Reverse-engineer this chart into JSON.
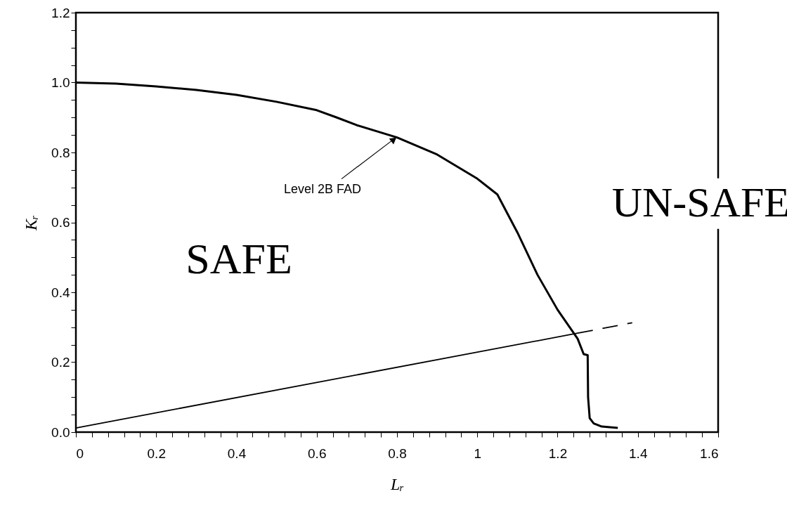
{
  "chart_data": {
    "type": "line",
    "xlabel": "Lᵣ",
    "ylabel": "Kᵣ",
    "xlim": [
      0,
      1.6
    ],
    "ylim": [
      0,
      1.2
    ],
    "xticks": [
      0,
      {
        "value": 0.04,
        "label": null
      },
      {
        "value": 0.08,
        "label": null
      },
      {
        "value": 0.12,
        "label": null
      },
      {
        "value": 0.16,
        "label": null
      },
      0.2,
      {
        "value": 0.24,
        "label": null
      },
      {
        "value": 0.28,
        "label": null
      },
      {
        "value": 0.32,
        "label": null
      },
      {
        "value": 0.36,
        "label": null
      },
      0.4,
      {
        "value": 0.44,
        "label": null
      },
      {
        "value": 0.48,
        "label": null
      },
      {
        "value": 0.52,
        "label": null
      },
      {
        "value": 0.56,
        "label": null
      },
      0.6,
      {
        "value": 0.64,
        "label": null
      },
      {
        "value": 0.68,
        "label": null
      },
      {
        "value": 0.72,
        "label": null
      },
      {
        "value": 0.76,
        "label": null
      },
      0.8,
      {
        "value": 0.84,
        "label": null
      },
      {
        "value": 0.88,
        "label": null
      },
      {
        "value": 0.92,
        "label": null
      },
      {
        "value": 0.96,
        "label": null
      },
      1,
      {
        "value": 1.04,
        "label": null
      },
      {
        "value": 1.08,
        "label": null
      },
      {
        "value": 1.12,
        "label": null
      },
      {
        "value": 1.16,
        "label": null
      },
      1.2,
      {
        "value": 1.24,
        "label": null
      },
      {
        "value": 1.28,
        "label": null
      },
      {
        "value": 1.32,
        "label": null
      },
      {
        "value": 1.36,
        "label": null
      },
      1.4,
      {
        "value": 1.44,
        "label": null
      },
      {
        "value": 1.48,
        "label": null
      },
      {
        "value": 1.52,
        "label": null
      },
      {
        "value": 1.56,
        "label": null
      },
      1.6
    ],
    "yticks": [
      {
        "value": 0,
        "label": "0.0"
      },
      {
        "value": 0.05,
        "label": null
      },
      {
        "value": 0.1,
        "label": null
      },
      {
        "value": 0.15,
        "label": null
      },
      0.2,
      {
        "value": 0.25,
        "label": null
      },
      {
        "value": 0.3,
        "label": null
      },
      {
        "value": 0.35,
        "label": null
      },
      0.4,
      {
        "value": 0.45,
        "label": null
      },
      {
        "value": 0.5,
        "label": null
      },
      {
        "value": 0.55,
        "label": null
      },
      0.6,
      {
        "value": 0.65,
        "label": null
      },
      {
        "value": 0.7,
        "label": null
      },
      {
        "value": 0.75,
        "label": null
      },
      0.8,
      {
        "value": 0.85,
        "label": null
      },
      {
        "value": 0.9,
        "label": null
      },
      {
        "value": 0.95,
        "label": null
      },
      {
        "value": 1,
        "label": "1.0"
      },
      {
        "value": 1.05,
        "label": null
      },
      {
        "value": 1.1,
        "label": null
      },
      {
        "value": 1.15,
        "label": null
      },
      1.2
    ],
    "grid": false,
    "marker": "none",
    "series": [
      {
        "color": "#000000",
        "line_style": "solid",
        "x": [
          0,
          0.1,
          0.2,
          0.3,
          0.4,
          0.5,
          0.6,
          0.65,
          0.7,
          0.8,
          0.9,
          1.0,
          1.05,
          1.1,
          1.15,
          1.2,
          1.25,
          1.265,
          1.275,
          1.276,
          1.28,
          1.29,
          1.31,
          1.35
        ],
        "values": [
          1.0,
          0.997,
          0.989,
          0.979,
          0.965,
          0.945,
          0.921,
          0.9,
          0.878,
          0.843,
          0.794,
          0.725,
          0.68,
          0.571,
          0.45,
          0.35,
          0.267,
          0.223,
          0.22,
          0.1,
          0.04,
          0.025,
          0.016,
          0.012
        ]
      },
      {
        "color": "#000000",
        "line_style": "solid",
        "x": [
          0,
          1.25
        ],
        "values": [
          0.012,
          0.283
        ]
      },
      {
        "color": "#000000",
        "line_style": "dashed",
        "x": [
          1.25,
          1.386
        ],
        "values": [
          0.283,
          0.313
        ]
      }
    ],
    "annotations": [
      {
        "text": "Level 2B FAD",
        "x": 0.8,
        "y": 0.845
      },
      "SAFE",
      "UN-SAFE"
    ]
  }
}
